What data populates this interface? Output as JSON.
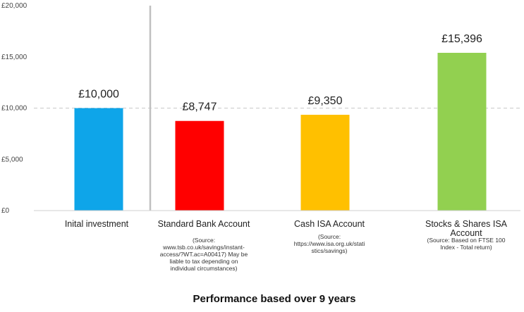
{
  "chart_data": {
    "type": "bar",
    "title": "",
    "xlabel": "Performance based over 9 years",
    "ylabel": "",
    "ylim": [
      0,
      20000
    ],
    "yticks": [
      0,
      5000,
      10000,
      15000,
      20000
    ],
    "ytick_labels": [
      "£0",
      "£5,000",
      "£10,000",
      "£15,000",
      "£20,000"
    ],
    "grid": false,
    "reference_line": {
      "value": 10000,
      "style": "dashed"
    },
    "categories": [
      "Inital investment",
      "Standard Bank Account",
      "Cash ISA Account",
      "Stocks & Shares ISA Account"
    ],
    "category_lines": [
      [
        "Inital investment"
      ],
      [
        "Standard Bank Account"
      ],
      [
        "Cash ISA Account"
      ],
      [
        "Stocks & Shares ISA",
        "Account"
      ]
    ],
    "notes": [
      [],
      [
        "(Source:",
        "www.tsb.co.uk/savings/instant-",
        "access/?WT.ac=A00417) May be",
        "liable to tax depending on",
        "individual circumstances)"
      ],
      [
        "(Source:",
        "https://www.isa.org.uk/stati",
        "stics/savings)"
      ],
      [
        "(Source: Based on FTSE 100",
        "Index - Total return)"
      ]
    ],
    "values": [
      10000,
      8747,
      9350,
      15396
    ],
    "data_labels": [
      "£10,000",
      "£8,747",
      "£9,350",
      "£15,396"
    ],
    "colors": [
      "#0ea5e9",
      "#ff0000",
      "#ffc000",
      "#92d050"
    ]
  }
}
